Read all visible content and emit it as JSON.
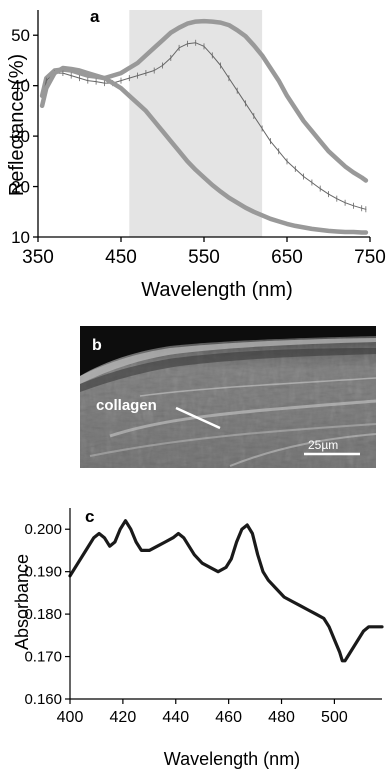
{
  "panels": {
    "a": {
      "letter": "a"
    },
    "b": {
      "letter": "b",
      "label": "collagen",
      "scalebar_label": "25µm"
    },
    "c": {
      "letter": "c"
    }
  },
  "colors": {
    "curve_gray": "#999999",
    "curve_thin": "#666666",
    "highlight": "#e4e4e4",
    "curve_black": "#1a1a1a"
  },
  "chart_data": [
    {
      "type": "line",
      "panel": "a",
      "xlabel": "Wavelength (nm)",
      "ylabel": "Reflectance (%)",
      "xlim": [
        350,
        750
      ],
      "ylim": [
        10,
        55
      ],
      "xticks": [
        350,
        450,
        550,
        650,
        750
      ],
      "yticks": [
        10,
        20,
        30,
        40,
        50
      ],
      "highlight_band": [
        460,
        620
      ],
      "series": [
        {
          "style": "thick",
          "x": [
            355,
            360,
            370,
            380,
            390,
            400,
            410,
            420,
            430,
            440,
            450,
            460,
            470,
            480,
            490,
            500,
            510,
            520,
            530,
            540,
            550,
            560,
            570,
            580,
            590,
            600,
            610,
            620,
            630,
            640,
            650,
            660,
            670,
            680,
            690,
            700,
            710,
            720,
            730,
            740,
            745
          ],
          "y": [
            38,
            41.5,
            43,
            43.2,
            43,
            42.5,
            42,
            41.8,
            41.5,
            42,
            42.5,
            43.5,
            44.5,
            46,
            47.5,
            49,
            50.5,
            51.5,
            52.3,
            52.7,
            52.8,
            52.7,
            52.5,
            52,
            51,
            49.8,
            48,
            46,
            43.5,
            41,
            38,
            35.5,
            33,
            31,
            29,
            27,
            25.5,
            24,
            22.8,
            21.8,
            21.2
          ]
        },
        {
          "style": "thin",
          "x": [
            355,
            360,
            370,
            380,
            390,
            400,
            410,
            420,
            430,
            440,
            450,
            460,
            470,
            480,
            490,
            500,
            510,
            520,
            530,
            540,
            550,
            560,
            570,
            580,
            590,
            600,
            610,
            620,
            630,
            640,
            650,
            660,
            670,
            680,
            690,
            700,
            710,
            720,
            730,
            740,
            745
          ],
          "y": [
            37,
            41,
            42.5,
            42.5,
            42,
            41.5,
            41,
            40.8,
            40.5,
            40.5,
            41,
            41.5,
            42,
            42.5,
            43,
            44,
            45.5,
            47.5,
            48.3,
            48.5,
            47.8,
            46,
            44,
            41.5,
            39,
            36.5,
            34,
            31.5,
            29,
            27,
            25,
            23.5,
            22,
            20.8,
            19.6,
            18.5,
            17.6,
            16.8,
            16.2,
            15.7,
            15.5
          ]
        },
        {
          "style": "thick",
          "x": [
            355,
            360,
            370,
            380,
            390,
            400,
            410,
            420,
            430,
            440,
            450,
            460,
            470,
            480,
            490,
            500,
            510,
            520,
            530,
            540,
            550,
            560,
            570,
            580,
            590,
            600,
            610,
            620,
            630,
            640,
            650,
            660,
            670,
            680,
            690,
            700,
            710,
            720,
            730,
            740,
            745
          ],
          "y": [
            36,
            39.5,
            42.5,
            43.5,
            43.3,
            43,
            42.5,
            42,
            41.5,
            40.5,
            39.5,
            38,
            36.5,
            35,
            33,
            31,
            29,
            27,
            25,
            23.3,
            21.8,
            20.3,
            19,
            17.8,
            16.8,
            15.8,
            15,
            14.3,
            13.6,
            13.1,
            12.6,
            12.2,
            11.9,
            11.6,
            11.4,
            11.2,
            11.1,
            11,
            11,
            10.9,
            10.9
          ]
        }
      ]
    },
    {
      "type": "line",
      "panel": "c",
      "xlabel": "Wavelength (nm)",
      "ylabel": "Absorbance",
      "xlim": [
        400,
        518
      ],
      "ylim": [
        0.16,
        0.205
      ],
      "xticks": [
        400,
        420,
        440,
        460,
        480,
        500
      ],
      "ytick_labels": [
        "0.160",
        "0.170",
        "0.180",
        "0.190",
        "0.200"
      ],
      "yticks": [
        0.16,
        0.17,
        0.18,
        0.19,
        0.2
      ],
      "series": [
        {
          "x": [
            400,
            403,
            406,
            409,
            411,
            413,
            415,
            417,
            419,
            421,
            423,
            425,
            427,
            430,
            433,
            436,
            439,
            441,
            443,
            445,
            447,
            450,
            453,
            456,
            459,
            461,
            463,
            465,
            467,
            469,
            471,
            473,
            475,
            478,
            481,
            484,
            487,
            490,
            493,
            496,
            498,
            500,
            502,
            503,
            504,
            505,
            507,
            509,
            511,
            513,
            515,
            518
          ],
          "y": [
            0.189,
            0.192,
            0.195,
            0.198,
            0.199,
            0.198,
            0.196,
            0.197,
            0.2,
            0.202,
            0.2,
            0.197,
            0.195,
            0.195,
            0.196,
            0.197,
            0.198,
            0.199,
            0.198,
            0.196,
            0.194,
            0.192,
            0.191,
            0.19,
            0.191,
            0.193,
            0.197,
            0.2,
            0.201,
            0.199,
            0.194,
            0.19,
            0.188,
            0.186,
            0.184,
            0.183,
            0.182,
            0.181,
            0.18,
            0.179,
            0.177,
            0.174,
            0.171,
            0.169,
            0.169,
            0.17,
            0.172,
            0.174,
            0.176,
            0.177,
            0.177,
            0.177
          ]
        }
      ]
    }
  ]
}
